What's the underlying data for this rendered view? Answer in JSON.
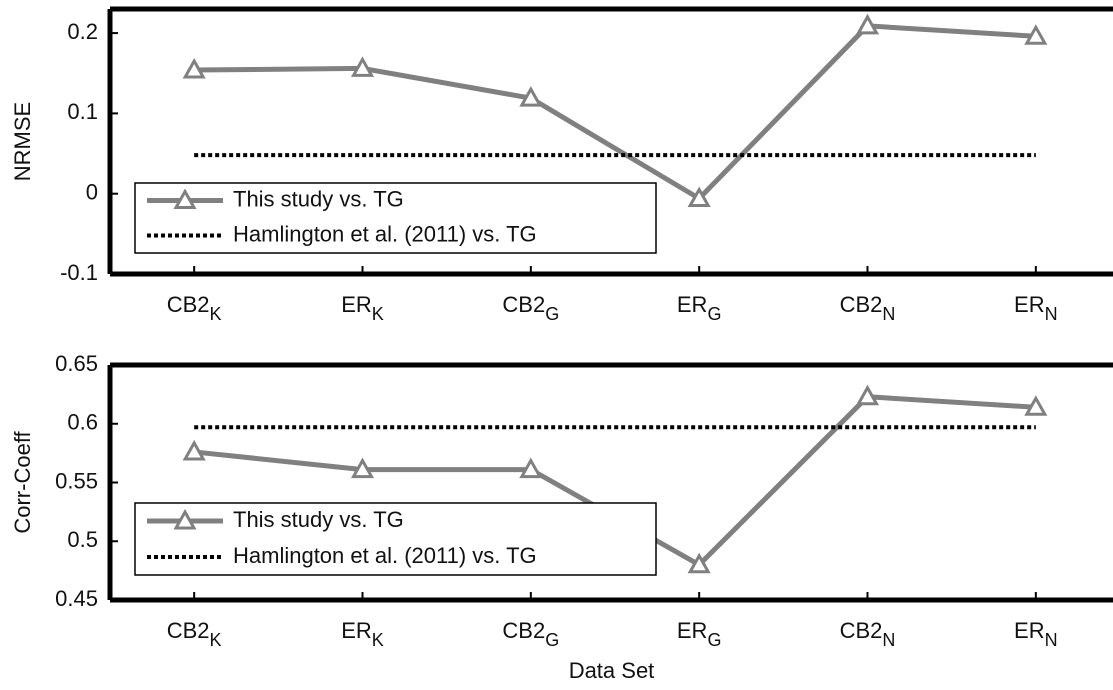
{
  "chart_data": [
    {
      "type": "line",
      "ylabel": "NRMSE",
      "categories": [
        "CB2",
        "ER",
        "CB2",
        "ER",
        "CB2",
        "ER"
      ],
      "category_subscripts": [
        "K",
        "K",
        "G",
        "G",
        "N",
        "N"
      ],
      "ylim": [
        -0.1,
        0.23
      ],
      "yticks": [
        -0.1,
        0,
        0.1,
        0.2
      ],
      "legend": "lower left",
      "series": [
        {
          "name": "This study vs. TG",
          "color": "#808080",
          "style": "solid",
          "marker": "triangle",
          "values": [
            0.154,
            0.156,
            0.119,
            -0.006,
            0.209,
            0.196
          ]
        },
        {
          "name": "Hamlington et al. (2011) vs. TG",
          "color": "#000000",
          "style": "dotted",
          "values": [
            0.048,
            0.048,
            0.048,
            0.048,
            0.048,
            0.048
          ]
        }
      ]
    },
    {
      "type": "line",
      "ylabel": "Corr-Coeff",
      "xlabel": "Data Set",
      "categories": [
        "CB2",
        "ER",
        "CB2",
        "ER",
        "CB2",
        "ER"
      ],
      "category_subscripts": [
        "K",
        "K",
        "G",
        "G",
        "N",
        "N"
      ],
      "ylim": [
        0.45,
        0.65
      ],
      "yticks": [
        0.45,
        0.5,
        0.55,
        0.6,
        0.65
      ],
      "legend": "lower left",
      "series": [
        {
          "name": "This study vs. TG",
          "color": "#808080",
          "style": "solid",
          "marker": "triangle",
          "values": [
            0.576,
            0.561,
            0.561,
            0.48,
            0.623,
            0.614
          ]
        },
        {
          "name": "Hamlington et al. (2011) vs. TG",
          "color": "#000000",
          "style": "dotted",
          "values": [
            0.597,
            0.597,
            0.597,
            0.597,
            0.597,
            0.597
          ]
        }
      ]
    }
  ]
}
